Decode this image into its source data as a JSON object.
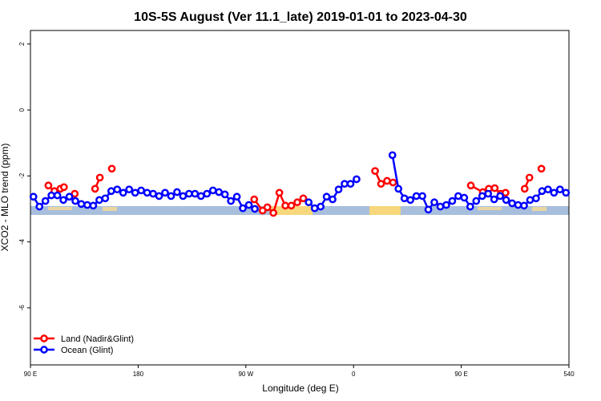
{
  "chart_data": {
    "type": "line",
    "title": "10S-5S August (Ver 11.1_late)   2019-01-01 to 2023-04-30",
    "x_label": "Longitude (deg E)",
    "y_label": "XCO2 - MLO trend (ppm)",
    "xlim": [
      90,
      540
    ],
    "ylim": [
      -7.73,
      2.41
    ],
    "xticks": [
      {
        "value": 90,
        "label": "90 E"
      },
      180,
      {
        "value": 270,
        "label": "90 W"
      },
      {
        "value": 360,
        "label": "0"
      },
      {
        "value": 450,
        "label": "90 E"
      },
      540
    ],
    "yticks": [
      2,
      0,
      -2,
      -4,
      -6
    ],
    "legend": "bottom-left",
    "series": [
      {
        "name": "Land (Nadir&Glint)",
        "color": "#ff0000",
        "x": [
          105,
          110,
          115,
          118,
          null,
          127,
          null,
          144,
          148,
          null,
          158,
          null,
          277,
          284,
          288,
          293,
          298,
          303,
          308,
          313,
          318,
          null,
          378,
          383,
          388,
          393,
          null,
          458,
          468,
          473,
          478,
          483,
          487,
          null,
          503,
          507,
          null,
          517
        ],
        "values": [
          -2.29,
          -2.46,
          -2.39,
          -2.34,
          null,
          -2.54,
          null,
          -2.39,
          -2.05,
          null,
          -1.78,
          null,
          -2.71,
          -3.05,
          -2.95,
          -3.12,
          -2.51,
          -2.9,
          -2.9,
          -2.8,
          -2.68,
          null,
          -1.85,
          -2.24,
          -2.15,
          -2.2,
          null,
          -2.29,
          -2.49,
          -2.39,
          -2.37,
          -2.54,
          -2.51,
          null,
          -2.39,
          -2.05,
          null,
          -1.78
        ]
      },
      {
        "name": "Ocean (Glint)",
        "color": "#0000ff",
        "x": [
          92.5,
          97.5,
          102.5,
          107.5,
          112.5,
          117.5,
          122.5,
          127.5,
          132.5,
          137.5,
          142.5,
          147.5,
          152.5,
          157.5,
          162.5,
          167.5,
          172.5,
          177.5,
          182.5,
          187.5,
          192.5,
          197.5,
          202.5,
          207.5,
          212.5,
          217.5,
          222.5,
          227.5,
          232.5,
          237.5,
          242.5,
          247.5,
          252.5,
          257.5,
          262.5,
          267.5,
          272.5,
          277.5,
          282.5,
          287.5,
          292.5,
          297.5,
          302.5,
          307.5,
          312.5,
          317.5,
          322.5,
          327.5,
          332.5,
          337.5,
          342.5,
          347.5,
          352.5,
          357.5,
          362.5,
          367.5,
          372.5,
          377.5,
          382.5,
          387.5,
          392.5,
          397.5,
          402.5,
          407.5,
          412.5,
          417.5,
          422.5,
          427.5,
          432.5,
          437.5,
          442.5,
          447.5,
          452.5,
          457.5,
          462.5,
          467.5,
          472.5,
          477.5,
          482.5,
          487.5,
          492.5,
          497.5,
          502.5,
          507.5,
          512.5,
          517.5,
          522.5,
          527.5,
          532.5,
          537.5
        ],
        "values": [
          -2.63,
          -2.93,
          -2.76,
          -2.59,
          -2.59,
          -2.73,
          -2.63,
          -2.76,
          -2.85,
          -2.88,
          -2.9,
          -2.73,
          -2.68,
          -2.46,
          -2.41,
          -2.51,
          -2.41,
          -2.51,
          -2.44,
          -2.51,
          -2.54,
          -2.61,
          -2.51,
          -2.61,
          -2.49,
          -2.61,
          -2.54,
          -2.54,
          -2.61,
          -2.54,
          -2.44,
          -2.49,
          -2.56,
          -2.76,
          -2.63,
          -2.98,
          -2.88,
          -3.0,
          null,
          null,
          null,
          null,
          null,
          null,
          null,
          null,
          -2.8,
          -2.98,
          -2.93,
          -2.63,
          -2.71,
          -2.41,
          -2.24,
          -2.24,
          -2.1,
          null,
          null,
          null,
          null,
          null,
          -1.37,
          -2.39,
          -2.68,
          -2.73,
          -2.61,
          -2.61,
          -3.02,
          -2.8,
          -2.93,
          -2.88,
          -2.76,
          -2.61,
          -2.66,
          -2.93,
          -2.76,
          -2.61,
          -2.54,
          -2.71,
          -2.61,
          -2.73,
          -2.83,
          -2.88,
          -2.9,
          -2.73,
          -2.68,
          -2.46,
          -2.41,
          -2.51,
          -2.41,
          -2.51
        ]
      }
    ]
  }
}
